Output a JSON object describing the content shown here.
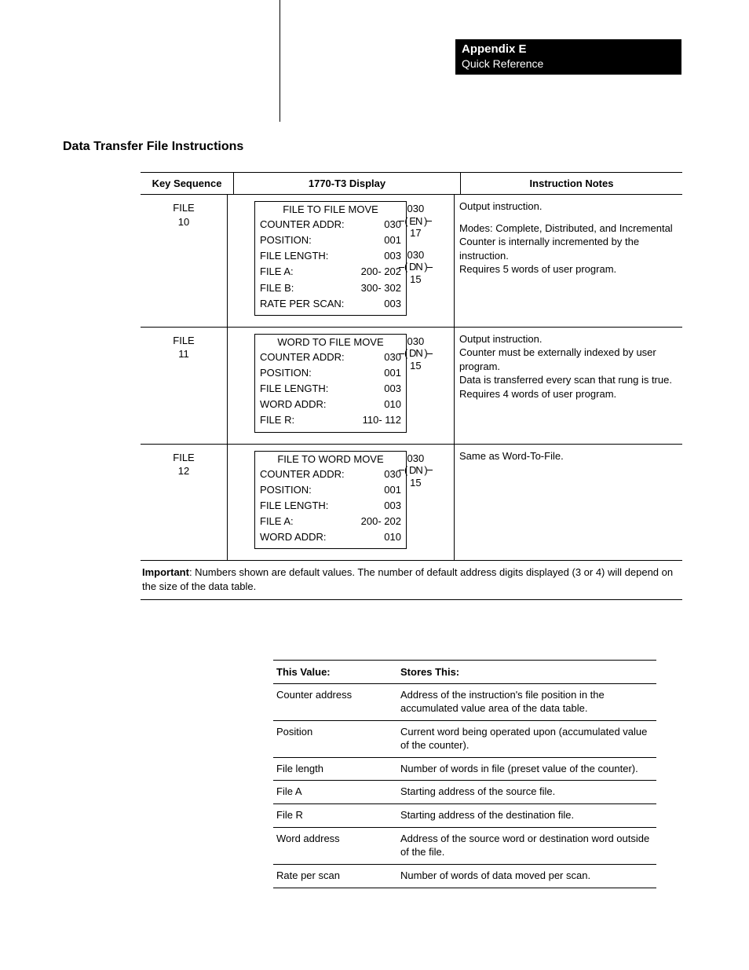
{
  "header": {
    "appendix": "Appendix E",
    "subtitle": "Quick Reference"
  },
  "section_title": "Data Transfer File Instructions",
  "table": {
    "headers": {
      "key_sequence": "Key Sequence",
      "display": "1770-T3 Display",
      "notes": "Instruction Notes"
    },
    "rows": [
      {
        "key_line1": "FILE",
        "key_line2": "10",
        "disp_title": "FILE TO FILE MOVE",
        "fields": [
          {
            "label": "COUNTER ADDR:",
            "value": "030"
          },
          {
            "label": "POSITION:",
            "value": "001"
          },
          {
            "label": "FILE LENGTH:",
            "value": "003"
          },
          {
            "label": "FILE A:",
            "value": "200- 202"
          },
          {
            "label": "FILE B:",
            "value": "300- 302"
          },
          {
            "label": "RATE PER SCAN:",
            "value": "003"
          }
        ],
        "coils": [
          {
            "addr": "030",
            "sym": "EN",
            "bit": "17"
          },
          {
            "addr": "030",
            "sym": "DN",
            "bit": "15"
          }
        ],
        "notes": "Output instruction.\n\nModes: Complete, Distributed, and Incremental Counter is internally incremented by the instruction.\nRequires 5 words of user program."
      },
      {
        "key_line1": "FILE",
        "key_line2": "11",
        "disp_title": "WORD TO FILE MOVE",
        "fields": [
          {
            "label": "COUNTER ADDR:",
            "value": "030"
          },
          {
            "label": "POSITION:",
            "value": "001"
          },
          {
            "label": "FILE LENGTH:",
            "value": "003"
          },
          {
            "label": "WORD ADDR:",
            "value": "010"
          },
          {
            "label": "FILE R:",
            "value": "110- 112"
          }
        ],
        "coils": [
          {
            "addr": "030",
            "sym": "DN",
            "bit": "15"
          }
        ],
        "notes": "Output instruction.\nCounter must be externally indexed by user program.\nData is transferred every scan that rung is true.\nRequires 4 words of user program."
      },
      {
        "key_line1": "FILE",
        "key_line2": "12",
        "disp_title": "FILE TO WORD MOVE",
        "fields": [
          {
            "label": "COUNTER ADDR:",
            "value": "030"
          },
          {
            "label": "POSITION:",
            "value": "001"
          },
          {
            "label": "FILE LENGTH:",
            "value": "003"
          },
          {
            "label": "FILE A:",
            "value": "200- 202"
          },
          {
            "label": "WORD ADDR:",
            "value": "010"
          }
        ],
        "coils": [
          {
            "addr": "030",
            "sym": "DN",
            "bit": "15"
          }
        ],
        "notes": "Same as Word-To-File."
      }
    ],
    "footnote_label": "Important",
    "footnote_text": ": Numbers shown are default values.  The number of default address digits displayed (3 or 4) will depend on the size of the data table."
  },
  "value_table": {
    "headers": {
      "c1": "This Value:",
      "c2": "Stores This:"
    },
    "rows": [
      {
        "c1": "Counter address",
        "c2": "Address of the instruction's file position in the accumulated value area of the data table."
      },
      {
        "c1": "Position",
        "c2": "Current word being operated upon (accumulated value of the counter)."
      },
      {
        "c1": "File length",
        "c2": "Number of words in file (preset value of the counter)."
      },
      {
        "c1": "File A",
        "c2": "Starting address of the source file."
      },
      {
        "c1": "File R",
        "c2": "Starting address of the destination file."
      },
      {
        "c1": "Word address",
        "c2": "Address of the source word or destination word outside of the file."
      },
      {
        "c1": "Rate per scan",
        "c2": "Number of words of data moved per scan."
      }
    ]
  }
}
